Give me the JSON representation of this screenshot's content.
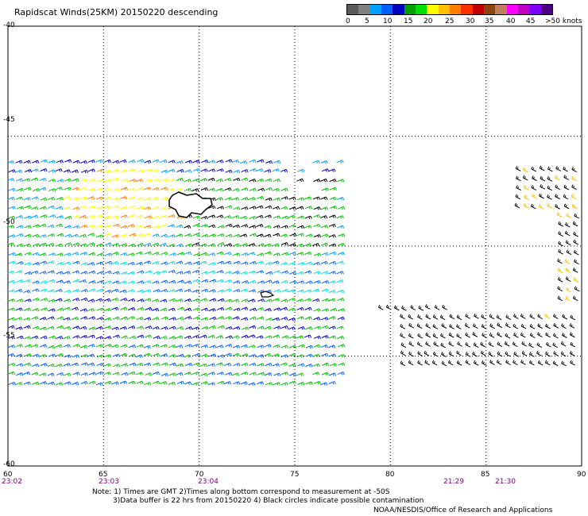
{
  "title": "Rapidscat Winds(25KM) 20150220 descending",
  "legend": {
    "colors": [
      "#5a5a5a",
      "#808080",
      "#00a0ff",
      "#0060ff",
      "#0000c0",
      "#00a000",
      "#00e000",
      "#ffff00",
      "#ffc000",
      "#ff8000",
      "#ff3000",
      "#c00000",
      "#8b4513",
      "#c08060",
      "#ff00ff",
      "#c000c0",
      "#8000ff",
      "#4b0082"
    ],
    "labels": [
      "0",
      "5",
      "10",
      "15",
      "20",
      "25",
      "30",
      "35",
      "40",
      "45",
      ">50 knots"
    ]
  },
  "map": {
    "lon_range": [
      60,
      90
    ],
    "lat_range": [
      -60,
      -40
    ],
    "lat_labels": [
      "-40",
      "-45",
      "-50",
      "-55",
      "-60"
    ],
    "lon_labels": [
      "60",
      "65",
      "70",
      "75",
      "80",
      "85",
      "90"
    ],
    "islands": [
      "Kerguelen Islands",
      "Heard Island"
    ]
  },
  "times": [
    {
      "text": "23:02"
    },
    {
      "text": "23:03"
    },
    {
      "text": "23:04"
    },
    {
      "text": "21:29"
    },
    {
      "text": "21:30"
    }
  ],
  "notes": [
    "Note: 1) Times are GMT 2)Times along bottom correspond to measurement at -50S",
    "3)Data buffer is 22 hrs from 20150220 4) Black circles indicate possible contamination"
  ],
  "credit": "NOAA/NESDIS/Office of Research and Applications"
}
